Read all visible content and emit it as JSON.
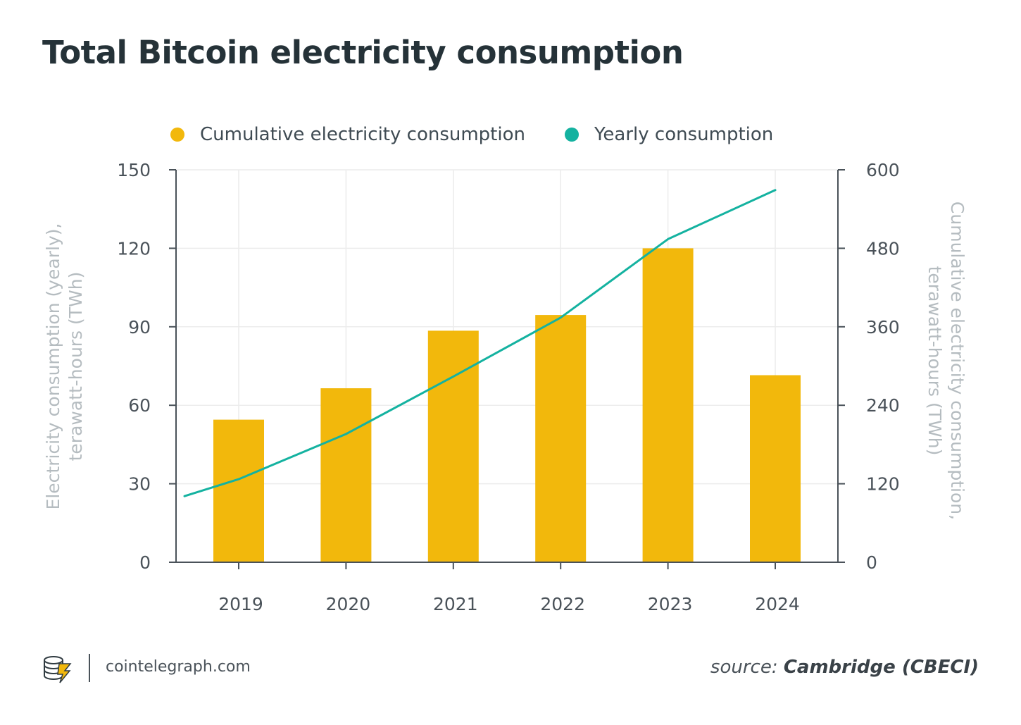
{
  "title": "Total Bitcoin electricity consumption",
  "legend": {
    "cumulative_label": "Cumulative electricity consumption",
    "yearly_label": "Yearly consumption"
  },
  "colors": {
    "bar": "#F2B80C",
    "line": "#14B2A0",
    "axis": "#4a5259",
    "grid": "#ececec",
    "axis_title": "#b5bcc0",
    "tick_text": "#4a5259"
  },
  "footer": {
    "logo_icon": "cointelegraph-logo-icon",
    "site": "cointelegraph.com",
    "source_prefix": "source:",
    "source_name": "Cambridge (CBECI)"
  },
  "chart_data": {
    "type": "bar",
    "title": "Total Bitcoin electricity consumption",
    "categories": [
      "2019",
      "2020",
      "2021",
      "2022",
      "2023",
      "2024"
    ],
    "series": [
      {
        "name": "Cumulative electricity consumption",
        "type": "bar",
        "axis": "left",
        "values": [
          54.5,
          66.5,
          88.5,
          94.5,
          120,
          71.5
        ]
      },
      {
        "name": "Yearly consumption",
        "type": "line",
        "axis": "right",
        "x": [
          2018.5,
          2019,
          2020,
          2021,
          2022,
          2023,
          2024
        ],
        "values": [
          101,
          127,
          196,
          284,
          374,
          494,
          569
        ]
      }
    ],
    "ylabel_left": "Electricity consumption (yearly), terawatt-hours (TWh)",
    "ylabel_left_lines": [
      "Electricity consumption (yearly),",
      "terawatt-hours (TWh)"
    ],
    "ylabel_right": "Cumulative electricity consumption, terawatt-hours (TWh)",
    "ylabel_right_lines": [
      "Cumulative electricity consumption,",
      "terawatt-hours (TWh)"
    ],
    "ylim_left": [
      0,
      150
    ],
    "yticks_left": [
      0,
      30,
      60,
      90,
      120,
      150
    ],
    "ylim_right": [
      0,
      600
    ],
    "yticks_right": [
      0,
      120,
      240,
      360,
      480,
      600
    ],
    "grid": true,
    "legend_position": "top-center"
  }
}
